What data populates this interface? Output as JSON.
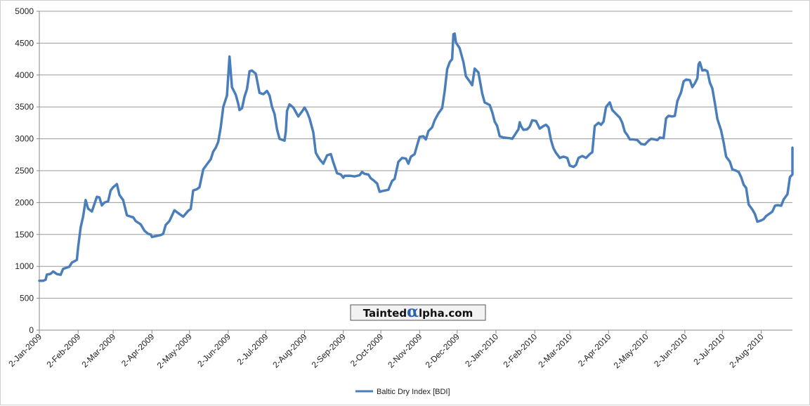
{
  "chart_data": {
    "type": "line",
    "title": "",
    "xlabel": "",
    "ylabel": "",
    "ylim": [
      0,
      5000
    ],
    "yticks": [
      0,
      500,
      1000,
      1500,
      2000,
      2500,
      3000,
      3500,
      4000,
      4500,
      5000
    ],
    "ytick_labels": [
      "0",
      "500",
      "1000",
      "1500",
      "2000",
      "2500",
      "3000",
      "3500",
      "4000",
      "4500",
      "5000"
    ],
    "xlim": [
      "2009-01-02",
      "2010-08-27"
    ],
    "xticks": [
      "2009-01-02",
      "2009-02-02",
      "2009-03-02",
      "2009-04-02",
      "2009-05-02",
      "2009-06-02",
      "2009-07-02",
      "2009-08-02",
      "2009-09-02",
      "2009-10-02",
      "2009-11-02",
      "2009-12-02",
      "2010-01-02",
      "2010-02-02",
      "2010-03-02",
      "2010-04-02",
      "2010-05-02",
      "2010-06-02",
      "2010-07-02",
      "2010-08-02"
    ],
    "xtick_labels": [
      "2-Jan-2009",
      "2-Feb-2009",
      "2-Mar-2009",
      "2-Apr-2009",
      "2-May-2009",
      "2-Jun-2009",
      "2-Jul-2009",
      "2-Aug-2009",
      "2-Sep-2009",
      "2-Oct-2009",
      "2-Nov-2009",
      "2-Dec-2009",
      "2-Jan-2010",
      "2-Feb-2010",
      "2-Mar-2010",
      "2-Apr-2010",
      "2-May-2010",
      "2-Jun-2010",
      "2-Jul-2010",
      "2-Aug-2010"
    ],
    "grid": true,
    "legend_position": "bottom-center",
    "series": [
      {
        "name": "Baltic Dry Index [BDI]",
        "color": "#4a7ebb",
        "points": [
          [
            "2009-01-02",
            774
          ],
          [
            "2009-01-05",
            773
          ],
          [
            "2009-01-07",
            790
          ],
          [
            "2009-01-08",
            870
          ],
          [
            "2009-01-11",
            882
          ],
          [
            "2009-01-13",
            920
          ],
          [
            "2009-01-16",
            880
          ],
          [
            "2009-01-19",
            868
          ],
          [
            "2009-01-21",
            960
          ],
          [
            "2009-01-26",
            995
          ],
          [
            "2009-01-28",
            1060
          ],
          [
            "2009-01-30",
            1080
          ],
          [
            "2009-02-01",
            1100
          ],
          [
            "2009-02-02",
            1300
          ],
          [
            "2009-02-04",
            1610
          ],
          [
            "2009-02-06",
            1780
          ],
          [
            "2009-02-08",
            2040
          ],
          [
            "2009-02-10",
            1905
          ],
          [
            "2009-02-13",
            1860
          ],
          [
            "2009-02-17",
            2090
          ],
          [
            "2009-02-19",
            2080
          ],
          [
            "2009-02-21",
            1955
          ],
          [
            "2009-02-23",
            2000
          ],
          [
            "2009-02-26",
            2020
          ],
          [
            "2009-02-28",
            2190
          ],
          [
            "2009-03-02",
            2240
          ],
          [
            "2009-03-05",
            2290
          ],
          [
            "2009-03-07",
            2120
          ],
          [
            "2009-03-10",
            2040
          ],
          [
            "2009-03-13",
            1800
          ],
          [
            "2009-03-16",
            1780
          ],
          [
            "2009-03-18",
            1770
          ],
          [
            "2009-03-20",
            1710
          ],
          [
            "2009-03-24",
            1660
          ],
          [
            "2009-03-27",
            1560
          ],
          [
            "2009-03-30",
            1510
          ],
          [
            "2009-04-01",
            1500
          ],
          [
            "2009-04-02",
            1460
          ],
          [
            "2009-04-04",
            1470
          ],
          [
            "2009-04-09",
            1490
          ],
          [
            "2009-04-11",
            1510
          ],
          [
            "2009-04-13",
            1650
          ],
          [
            "2009-04-16",
            1710
          ],
          [
            "2009-04-20",
            1880
          ],
          [
            "2009-04-24",
            1820
          ],
          [
            "2009-04-27",
            1780
          ],
          [
            "2009-05-01",
            1870
          ],
          [
            "2009-05-03",
            1900
          ],
          [
            "2009-05-05",
            2190
          ],
          [
            "2009-05-08",
            2210
          ],
          [
            "2009-05-10",
            2240
          ],
          [
            "2009-05-13",
            2520
          ],
          [
            "2009-05-16",
            2600
          ],
          [
            "2009-05-19",
            2680
          ],
          [
            "2009-05-21",
            2800
          ],
          [
            "2009-05-23",
            2860
          ],
          [
            "2009-05-25",
            2950
          ],
          [
            "2009-05-27",
            3180
          ],
          [
            "2009-05-29",
            3500
          ],
          [
            "2009-06-01",
            3680
          ],
          [
            "2009-06-02",
            3990
          ],
          [
            "2009-06-03",
            4290
          ],
          [
            "2009-06-05",
            3810
          ],
          [
            "2009-06-08",
            3690
          ],
          [
            "2009-06-10",
            3550
          ],
          [
            "2009-06-11",
            3450
          ],
          [
            "2009-06-13",
            3480
          ],
          [
            "2009-06-15",
            3660
          ],
          [
            "2009-06-17",
            3780
          ],
          [
            "2009-06-19",
            4060
          ],
          [
            "2009-06-21",
            4070
          ],
          [
            "2009-06-24",
            4020
          ],
          [
            "2009-06-27",
            3720
          ],
          [
            "2009-06-30",
            3700
          ],
          [
            "2009-07-03",
            3750
          ],
          [
            "2009-07-05",
            3680
          ],
          [
            "2009-07-07",
            3500
          ],
          [
            "2009-07-09",
            3390
          ],
          [
            "2009-07-11",
            3150
          ],
          [
            "2009-07-13",
            3000
          ],
          [
            "2009-07-17",
            2970
          ],
          [
            "2009-07-18",
            3110
          ],
          [
            "2009-07-19",
            3440
          ],
          [
            "2009-07-21",
            3540
          ],
          [
            "2009-07-24",
            3490
          ],
          [
            "2009-07-28",
            3350
          ],
          [
            "2009-07-31",
            3430
          ],
          [
            "2009-08-02",
            3490
          ],
          [
            "2009-08-04",
            3420
          ],
          [
            "2009-08-06",
            3320
          ],
          [
            "2009-08-09",
            3100
          ],
          [
            "2009-08-11",
            2780
          ],
          [
            "2009-08-14",
            2680
          ],
          [
            "2009-08-17",
            2610
          ],
          [
            "2009-08-20",
            2740
          ],
          [
            "2009-08-23",
            2760
          ],
          [
            "2009-08-25",
            2630
          ],
          [
            "2009-08-28",
            2460
          ],
          [
            "2009-08-31",
            2440
          ],
          [
            "2009-09-02",
            2390
          ],
          [
            "2009-09-03",
            2420
          ],
          [
            "2009-09-08",
            2420
          ],
          [
            "2009-09-11",
            2410
          ],
          [
            "2009-09-15",
            2430
          ],
          [
            "2009-09-17",
            2480
          ],
          [
            "2009-09-19",
            2450
          ],
          [
            "2009-09-22",
            2440
          ],
          [
            "2009-09-24",
            2380
          ],
          [
            "2009-09-26",
            2350
          ],
          [
            "2009-09-29",
            2300
          ],
          [
            "2009-10-01",
            2170
          ],
          [
            "2009-10-03",
            2180
          ],
          [
            "2009-10-08",
            2200
          ],
          [
            "2009-10-11",
            2340
          ],
          [
            "2009-10-13",
            2370
          ],
          [
            "2009-10-16",
            2640
          ],
          [
            "2009-10-19",
            2700
          ],
          [
            "2009-10-22",
            2690
          ],
          [
            "2009-10-24",
            2610
          ],
          [
            "2009-10-26",
            2720
          ],
          [
            "2009-10-29",
            2760
          ],
          [
            "2009-10-31",
            2900
          ],
          [
            "2009-11-02",
            3030
          ],
          [
            "2009-11-05",
            3040
          ],
          [
            "2009-11-07",
            2990
          ],
          [
            "2009-11-09",
            3120
          ],
          [
            "2009-11-12",
            3180
          ],
          [
            "2009-11-14",
            3290
          ],
          [
            "2009-11-17",
            3400
          ],
          [
            "2009-11-20",
            3480
          ],
          [
            "2009-11-22",
            3750
          ],
          [
            "2009-11-24",
            4090
          ],
          [
            "2009-11-26",
            4200
          ],
          [
            "2009-11-28",
            4250
          ],
          [
            "2009-11-29",
            4640
          ],
          [
            "2009-11-30",
            4650
          ],
          [
            "2009-12-01",
            4510
          ],
          [
            "2009-12-04",
            4420
          ],
          [
            "2009-12-07",
            4200
          ],
          [
            "2009-12-09",
            3980
          ],
          [
            "2009-12-12",
            3900
          ],
          [
            "2009-12-14",
            3840
          ],
          [
            "2009-12-16",
            4100
          ],
          [
            "2009-12-19",
            4040
          ],
          [
            "2009-12-22",
            3710
          ],
          [
            "2009-12-24",
            3570
          ],
          [
            "2009-12-28",
            3530
          ],
          [
            "2009-12-30",
            3420
          ],
          [
            "2010-01-01",
            3270
          ],
          [
            "2010-01-03",
            3200
          ],
          [
            "2010-01-05",
            3040
          ],
          [
            "2010-01-08",
            3020
          ],
          [
            "2010-01-13",
            3010
          ],
          [
            "2010-01-15",
            3000
          ],
          [
            "2010-01-17",
            3060
          ],
          [
            "2010-01-20",
            3150
          ],
          [
            "2010-01-21",
            3260
          ],
          [
            "2010-01-22",
            3200
          ],
          [
            "2010-01-24",
            3140
          ],
          [
            "2010-01-27",
            3150
          ],
          [
            "2010-01-29",
            3190
          ],
          [
            "2010-01-31",
            3290
          ],
          [
            "2010-02-03",
            3280
          ],
          [
            "2010-02-06",
            3160
          ],
          [
            "2010-02-09",
            3200
          ],
          [
            "2010-02-11",
            3220
          ],
          [
            "2010-02-13",
            3180
          ],
          [
            "2010-02-15",
            2980
          ],
          [
            "2010-02-17",
            2850
          ],
          [
            "2010-02-19",
            2780
          ],
          [
            "2010-02-22",
            2700
          ],
          [
            "2010-02-25",
            2720
          ],
          [
            "2010-02-28",
            2700
          ],
          [
            "2010-03-02",
            2580
          ],
          [
            "2010-03-05",
            2560
          ],
          [
            "2010-03-07",
            2590
          ],
          [
            "2010-03-09",
            2700
          ],
          [
            "2010-03-12",
            2730
          ],
          [
            "2010-03-15",
            2700
          ],
          [
            "2010-03-18",
            2760
          ],
          [
            "2010-03-20",
            2790
          ],
          [
            "2010-03-22",
            3200
          ],
          [
            "2010-03-25",
            3250
          ],
          [
            "2010-03-27",
            3220
          ],
          [
            "2010-03-29",
            3270
          ],
          [
            "2010-03-31",
            3500
          ],
          [
            "2010-04-03",
            3570
          ],
          [
            "2010-04-05",
            3450
          ],
          [
            "2010-04-08",
            3390
          ],
          [
            "2010-04-11",
            3330
          ],
          [
            "2010-04-13",
            3250
          ],
          [
            "2010-04-15",
            3110
          ],
          [
            "2010-04-17",
            3060
          ],
          [
            "2010-04-19",
            2990
          ],
          [
            "2010-04-22",
            2990
          ],
          [
            "2010-04-25",
            2980
          ],
          [
            "2010-04-28",
            2920
          ],
          [
            "2010-05-01",
            2910
          ],
          [
            "2010-05-04",
            2970
          ],
          [
            "2010-05-06",
            3000
          ],
          [
            "2010-05-09",
            2990
          ],
          [
            "2010-05-11",
            2980
          ],
          [
            "2010-05-13",
            3020
          ],
          [
            "2010-05-16",
            3010
          ],
          [
            "2010-05-18",
            3320
          ],
          [
            "2010-05-20",
            3360
          ],
          [
            "2010-05-23",
            3350
          ],
          [
            "2010-05-25",
            3360
          ],
          [
            "2010-05-27",
            3590
          ],
          [
            "2010-05-30",
            3730
          ],
          [
            "2010-06-01",
            3900
          ],
          [
            "2010-06-03",
            3930
          ],
          [
            "2010-06-06",
            3920
          ],
          [
            "2010-06-08",
            3810
          ],
          [
            "2010-06-10",
            3870
          ],
          [
            "2010-06-12",
            3950
          ],
          [
            "2010-06-13",
            4170
          ],
          [
            "2010-06-14",
            4200
          ],
          [
            "2010-06-16",
            4070
          ],
          [
            "2010-06-18",
            4080
          ],
          [
            "2010-06-20",
            4060
          ],
          [
            "2010-06-22",
            3880
          ],
          [
            "2010-06-24",
            3790
          ],
          [
            "2010-06-26",
            3560
          ],
          [
            "2010-06-28",
            3310
          ],
          [
            "2010-07-01",
            3130
          ],
          [
            "2010-07-03",
            2940
          ],
          [
            "2010-07-05",
            2720
          ],
          [
            "2010-07-08",
            2640
          ],
          [
            "2010-07-10",
            2520
          ],
          [
            "2010-07-13",
            2500
          ],
          [
            "2010-07-15",
            2480
          ],
          [
            "2010-07-17",
            2400
          ],
          [
            "2010-07-19",
            2280
          ],
          [
            "2010-07-21",
            2230
          ],
          [
            "2010-07-23",
            1970
          ],
          [
            "2010-07-26",
            1890
          ],
          [
            "2010-07-28",
            1820
          ],
          [
            "2010-07-30",
            1700
          ],
          [
            "2010-08-02",
            1720
          ],
          [
            "2010-08-04",
            1740
          ],
          [
            "2010-08-06",
            1790
          ],
          [
            "2010-08-09",
            1830
          ],
          [
            "2010-08-11",
            1860
          ],
          [
            "2010-08-13",
            1950
          ],
          [
            "2010-08-15",
            1960
          ],
          [
            "2010-08-18",
            1950
          ],
          [
            "2010-08-20",
            2050
          ],
          [
            "2010-08-23",
            2130
          ],
          [
            "2010-08-25",
            2400
          ],
          [
            "2010-08-27",
            2440
          ],
          [
            "2010-08-30",
            2470
          ],
          [
            "2010-09-02",
            2550
          ],
          [
            "2010-09-04",
            2760
          ],
          [
            "2010-09-07",
            2810
          ],
          [
            "2010-09-09",
            2860
          ],
          [
            "2010-09-11",
            2700
          ]
        ]
      }
    ],
    "watermark": {
      "text_before": "Tainted",
      "alpha_glyph": "α",
      "text_after": "lpha.com"
    }
  }
}
